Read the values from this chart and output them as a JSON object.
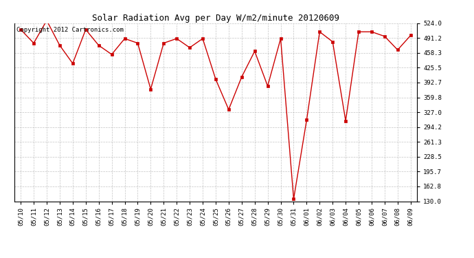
{
  "title": "Solar Radiation Avg per Day W/m2/minute 20120609",
  "copyright_text": "Copyright 2012 Cartronics.com",
  "dates": [
    "05/10",
    "05/11",
    "05/12",
    "05/13",
    "05/14",
    "05/15",
    "05/16",
    "05/17",
    "05/18",
    "05/19",
    "05/20",
    "05/21",
    "05/22",
    "05/23",
    "05/24",
    "05/25",
    "05/26",
    "05/27",
    "05/28",
    "05/29",
    "05/30",
    "05/31",
    "06/01",
    "06/02",
    "06/03",
    "06/04",
    "06/05",
    "06/06",
    "06/07",
    "06/08",
    "06/09"
  ],
  "values": [
    510,
    480,
    530,
    475,
    435,
    510,
    475,
    455,
    490,
    480,
    378,
    480,
    490,
    470,
    490,
    400,
    333,
    405,
    462,
    385,
    490,
    135,
    310,
    505,
    483,
    308,
    505,
    505,
    495,
    465,
    497
  ],
  "line_color": "#cc0000",
  "marker_color": "#cc0000",
  "bg_color": "#ffffff",
  "grid_color": "#aaaaaa",
  "yticks": [
    130.0,
    162.8,
    195.7,
    228.5,
    261.3,
    294.2,
    327.0,
    359.8,
    392.7,
    425.5,
    458.3,
    491.2,
    524.0
  ],
  "ymin": 130.0,
  "ymax": 524.0,
  "title_fontsize": 9,
  "tick_fontsize": 6.5,
  "copyright_fontsize": 6.5
}
